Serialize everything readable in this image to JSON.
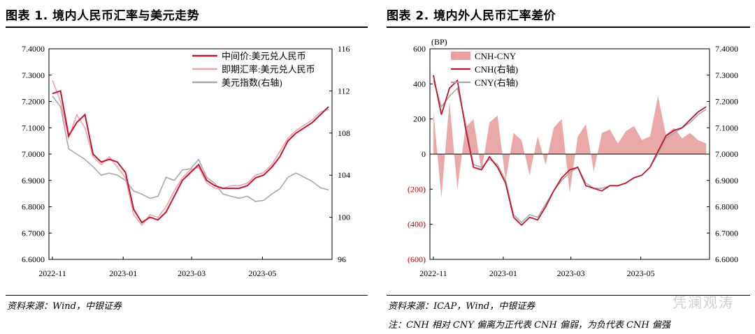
{
  "left": {
    "title": "图表 1. 境内人民币汇率与美元走势",
    "source": "资料来源：Wind，中银证券",
    "legend": [
      "中间价:美元兑人民币",
      "即期汇率:美元兑人民币",
      "美元指数(右轴)"
    ],
    "y_left_ticks": [
      "7.4000",
      "7.3000",
      "7.2000",
      "7.1000",
      "7.0000",
      "6.9000",
      "6.8000",
      "6.7000",
      "6.6000"
    ],
    "y_right_ticks": [
      "116",
      "112",
      "108",
      "104",
      "100",
      "96"
    ],
    "x_ticks": [
      "2022-11",
      "2023-01",
      "2023-03",
      "2023-05"
    ]
  },
  "right": {
    "title": "图表 2. 境内外人民币汇率差价",
    "source": "资料来源：ICAP，Wind，中银证券",
    "note": "注：CNH 相对 CNY 偏离为正代表 CNH 偏弱，为负代表 CNH 偏强",
    "unit_label": "(BP)",
    "legend": [
      "CNH-CNY",
      "CNH(右轴)",
      "CNY(右轴)"
    ],
    "y_left_ticks": [
      "600",
      "400",
      "200",
      "0",
      "(200)",
      "(400)",
      "(600)"
    ],
    "y_right_ticks": [
      "7.4000",
      "7.3000",
      "7.2000",
      "7.1000",
      "7.0000",
      "6.9000",
      "6.8000",
      "6.7000",
      "6.6000"
    ],
    "x_ticks": [
      "2022-11",
      "2023-01",
      "2023-03",
      "2023-05"
    ]
  },
  "watermark": "凭澜观涛",
  "colors": {
    "cny_mid": "#c0152f",
    "spot": "#f2a0a8",
    "dxy": "#a8a8a8",
    "spread": "#e8a0a0",
    "neg_tick": "#c00000"
  },
  "chart_data": [
    {
      "type": "line",
      "title": "境内人民币汇率与美元走势",
      "x": [
        "2022-11-01",
        "2022-11-08",
        "2022-11-15",
        "2022-11-22",
        "2022-11-29",
        "2022-12-06",
        "2022-12-13",
        "2022-12-20",
        "2022-12-27",
        "2023-01-03",
        "2023-01-10",
        "2023-01-17",
        "2023-01-24",
        "2023-01-31",
        "2023-02-07",
        "2023-02-14",
        "2023-02-21",
        "2023-02-28",
        "2023-03-07",
        "2023-03-14",
        "2023-03-21",
        "2023-03-28",
        "2023-04-04",
        "2023-04-11",
        "2023-04-18",
        "2023-04-25",
        "2023-05-02",
        "2023-05-09",
        "2023-05-16",
        "2023-05-23",
        "2023-05-30",
        "2023-06-06",
        "2023-06-13",
        "2023-06-20",
        "2023-06-27"
      ],
      "series": [
        {
          "name": "中间价:美元兑人民币",
          "axis": "left",
          "values": [
            7.23,
            7.24,
            7.07,
            7.12,
            7.15,
            7.0,
            6.97,
            6.98,
            6.97,
            6.93,
            6.79,
            6.74,
            6.76,
            6.75,
            6.78,
            6.84,
            6.9,
            6.93,
            6.96,
            6.9,
            6.88,
            6.87,
            6.87,
            6.87,
            6.88,
            6.91,
            6.92,
            6.95,
            6.99,
            7.05,
            7.08,
            7.1,
            7.12,
            7.15,
            7.18
          ]
        },
        {
          "name": "即期汇率:美元兑人民币",
          "axis": "left",
          "values": [
            7.28,
            7.2,
            7.06,
            7.15,
            7.1,
            6.99,
            6.96,
            6.99,
            6.95,
            6.91,
            6.77,
            6.73,
            6.77,
            6.76,
            6.8,
            6.86,
            6.91,
            6.94,
            6.95,
            6.89,
            6.87,
            6.87,
            6.88,
            6.88,
            6.89,
            6.92,
            6.93,
            6.96,
            7.01,
            7.06,
            7.09,
            7.11,
            7.13,
            7.16,
            7.17
          ]
        },
        {
          "name": "美元指数(右轴)",
          "axis": "right",
          "values": [
            111.5,
            110.5,
            106.5,
            106.0,
            105.5,
            104.8,
            104.0,
            104.2,
            104.0,
            103.5,
            102.5,
            102.2,
            101.8,
            102.0,
            103.8,
            103.5,
            104.5,
            104.6,
            105.5,
            103.8,
            103.2,
            102.2,
            102.0,
            101.8,
            102.0,
            101.5,
            101.6,
            102.2,
            102.7,
            103.8,
            104.2,
            103.8,
            103.4,
            102.8,
            102.6
          ]
        }
      ],
      "ylim_left": [
        6.6,
        7.4
      ],
      "ylim_right": [
        96,
        116
      ],
      "legend_position": "top-right"
    },
    {
      "type": "area",
      "title": "境内外人民币汇率差价",
      "x": [
        "2022-11-01",
        "2022-11-08",
        "2022-11-15",
        "2022-11-22",
        "2022-11-29",
        "2022-12-06",
        "2022-12-13",
        "2022-12-20",
        "2022-12-27",
        "2023-01-03",
        "2023-01-10",
        "2023-01-17",
        "2023-01-24",
        "2023-01-31",
        "2023-02-07",
        "2023-02-14",
        "2023-02-21",
        "2023-02-28",
        "2023-03-07",
        "2023-03-14",
        "2023-03-21",
        "2023-03-28",
        "2023-04-04",
        "2023-04-11",
        "2023-04-18",
        "2023-04-25",
        "2023-05-02",
        "2023-05-09",
        "2023-05-16",
        "2023-05-23",
        "2023-05-30",
        "2023-06-06",
        "2023-06-13",
        "2023-06-20",
        "2023-06-27"
      ],
      "series": [
        {
          "name": "CNH-CNY",
          "axis": "left",
          "values": [
            250,
            -250,
            300,
            -200,
            150,
            200,
            -100,
            180,
            220,
            -150,
            120,
            80,
            -120,
            100,
            -60,
            150,
            200,
            -220,
            100,
            170,
            -100,
            120,
            140,
            60,
            130,
            160,
            80,
            100,
            330,
            110,
            150,
            90,
            120,
            80,
            60
          ]
        },
        {
          "name": "CNH(右轴)",
          "axis": "right",
          "values": [
            7.3,
            7.15,
            7.25,
            7.28,
            7.1,
            6.95,
            6.94,
            6.99,
            6.95,
            6.89,
            6.76,
            6.73,
            6.76,
            6.75,
            6.8,
            6.86,
            6.91,
            6.94,
            6.95,
            6.88,
            6.87,
            6.86,
            6.88,
            6.88,
            6.89,
            6.91,
            6.92,
            6.95,
            7.01,
            7.07,
            7.09,
            7.1,
            7.13,
            7.16,
            7.18
          ]
        },
        {
          "name": "CNY(右轴)",
          "axis": "right",
          "values": [
            7.28,
            7.18,
            7.22,
            7.25,
            7.12,
            6.96,
            6.95,
            6.98,
            6.96,
            6.9,
            6.77,
            6.74,
            6.77,
            6.76,
            6.81,
            6.86,
            6.9,
            6.93,
            6.95,
            6.89,
            6.87,
            6.87,
            6.88,
            6.88,
            6.89,
            6.91,
            6.92,
            6.95,
            7.0,
            7.06,
            7.08,
            7.1,
            7.12,
            7.15,
            7.17
          ]
        }
      ],
      "ylim_left": [
        -600,
        600
      ],
      "ylim_right": [
        6.6,
        7.4
      ],
      "legend_position": "top-left"
    }
  ]
}
